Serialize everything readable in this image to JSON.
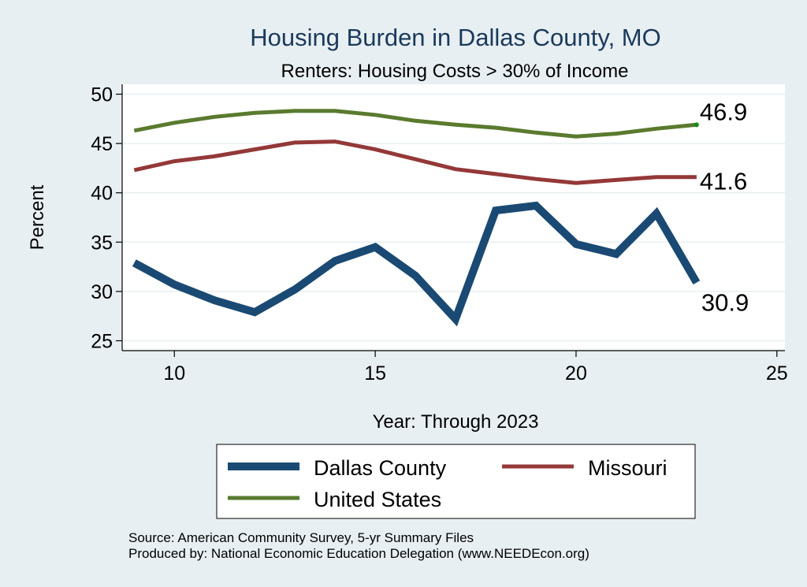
{
  "chart_data": {
    "type": "line",
    "title": "Housing Burden in Dallas County, MO",
    "subtitle": "Renters: Housing Costs > 30% of Income",
    "xlabel": "Year: Through 2023",
    "ylabel": "Percent",
    "xlim": [
      8.7,
      25.2
    ],
    "ylim": [
      24,
      51
    ],
    "xticks": [
      10,
      15,
      20,
      25
    ],
    "yticks": [
      25,
      30,
      35,
      40,
      45,
      50
    ],
    "grid": true,
    "x": [
      9,
      10,
      11,
      12,
      13,
      14,
      15,
      16,
      17,
      18,
      19,
      20,
      21,
      22,
      23
    ],
    "series": [
      {
        "name": "Dallas County",
        "color": "#1a4a73",
        "values": [
          32.9,
          30.7,
          29.1,
          27.9,
          30.2,
          33.1,
          34.5,
          31.6,
          27.2,
          38.2,
          38.7,
          34.8,
          33.8,
          37.9,
          30.9
        ],
        "end_label": "30.9"
      },
      {
        "name": "Missouri",
        "color": "#943838",
        "values": [
          42.3,
          43.2,
          43.7,
          44.4,
          45.1,
          45.2,
          44.4,
          43.4,
          42.4,
          41.9,
          41.4,
          41.0,
          41.3,
          41.6,
          41.6
        ],
        "end_label": "41.6"
      },
      {
        "name": "United States",
        "color": "#5a7a2e",
        "values": [
          46.3,
          47.1,
          47.7,
          48.1,
          48.3,
          48.3,
          47.9,
          47.3,
          46.9,
          46.6,
          46.1,
          45.7,
          46.0,
          46.5,
          46.9
        ],
        "end_label": "46.9"
      }
    ],
    "legend_position": "bottom"
  },
  "footer": {
    "source": "Source: American Community Survey, 5-yr Summary Files",
    "produced": "Produced by: National Economic Education Delegation (www.NEEDEcon.org)"
  }
}
